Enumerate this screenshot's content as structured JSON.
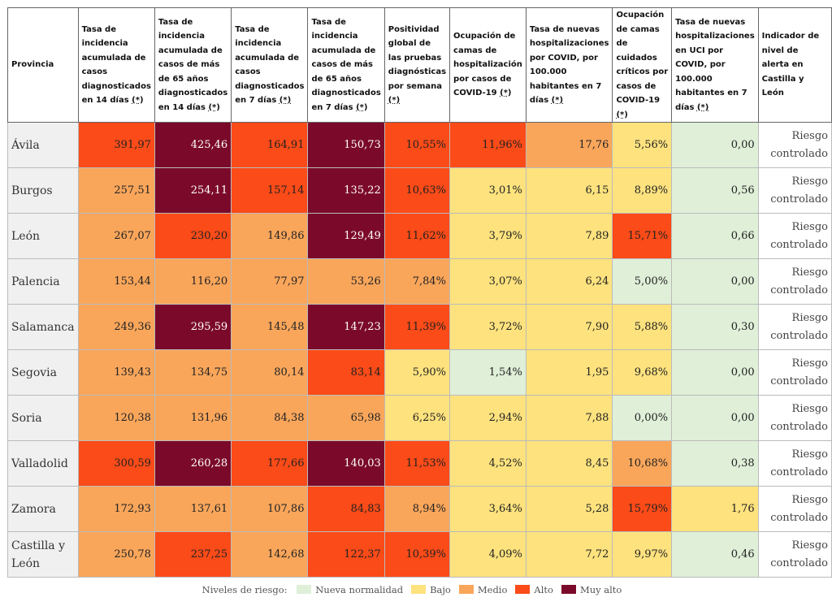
{
  "colors": {
    "normal": "#dfefd8",
    "bajo": "#fde27e",
    "medio": "#f9a65b",
    "alto": "#fb4b18",
    "muyalto": "#7b0a2a"
  },
  "table": {
    "headers": [
      {
        "text": "Provincia",
        "ast": ""
      },
      {
        "text": "Tasa de incidencia acumulada de casos diagnosticados en 14 días ",
        "ast": "(*)"
      },
      {
        "text": "Tasa de incidencia acumulada de casos de más de 65 años diagnosticados en 14 días ",
        "ast": "(*)"
      },
      {
        "text": "Tasa de incidencia acumulada de casos diagnosticados en 7 días ",
        "ast": "(*)"
      },
      {
        "text": "Tasa de incidencia acumulada de casos de más de 65 años diagnosticados en 7 días ",
        "ast": "(*)"
      },
      {
        "text": "Positividad global de las pruebas diagnósticas por semana ",
        "ast": "(*)"
      },
      {
        "text": "Ocupación de camas de hospitalización por casos de COVID-19 ",
        "ast": "(*)"
      },
      {
        "text": "Tasa de nuevas hospitalizaciones por COVID, por 100.000 habitantes en 7 días ",
        "ast": "(*)"
      },
      {
        "text": "Ocupación de camas de cuidados críticos por casos de COVID-19 ",
        "ast": "(*)"
      },
      {
        "text": "Tasa de nuevas hospitalizaciones en UCI por COVID, por 100.000 habitantes en 7 días ",
        "ast": "(*)"
      },
      {
        "text": "Indicador de nivel de alerta en Castilla y León",
        "ast": ""
      }
    ],
    "rows": [
      {
        "province": "Ávila",
        "cells": [
          [
            "391,97",
            "alto"
          ],
          [
            "425,46",
            "muyalto"
          ],
          [
            "164,91",
            "alto"
          ],
          [
            "150,73",
            "muyalto"
          ],
          [
            "10,55%",
            "alto"
          ],
          [
            "11,96%",
            "alto"
          ],
          [
            "17,76",
            "medio"
          ],
          [
            "5,56%",
            "bajo"
          ],
          [
            "0,00",
            "normal"
          ]
        ],
        "alert": "Riesgo controlado"
      },
      {
        "province": "Burgos",
        "cells": [
          [
            "257,51",
            "medio"
          ],
          [
            "254,11",
            "muyalto"
          ],
          [
            "157,14",
            "alto"
          ],
          [
            "135,22",
            "muyalto"
          ],
          [
            "10,63%",
            "alto"
          ],
          [
            "3,01%",
            "bajo"
          ],
          [
            "6,15",
            "bajo"
          ],
          [
            "8,89%",
            "bajo"
          ],
          [
            "0,56",
            "normal"
          ]
        ],
        "alert": "Riesgo controlado"
      },
      {
        "province": "León",
        "cells": [
          [
            "267,07",
            "medio"
          ],
          [
            "230,20",
            "alto"
          ],
          [
            "149,86",
            "medio"
          ],
          [
            "129,49",
            "muyalto"
          ],
          [
            "11,62%",
            "alto"
          ],
          [
            "3,79%",
            "bajo"
          ],
          [
            "7,89",
            "bajo"
          ],
          [
            "15,71%",
            "alto"
          ],
          [
            "0,66",
            "normal"
          ]
        ],
        "alert": "Riesgo controlado"
      },
      {
        "province": "Palencia",
        "cells": [
          [
            "153,44",
            "medio"
          ],
          [
            "116,20",
            "medio"
          ],
          [
            "77,97",
            "medio"
          ],
          [
            "53,26",
            "medio"
          ],
          [
            "7,84%",
            "medio"
          ],
          [
            "3,07%",
            "bajo"
          ],
          [
            "6,24",
            "bajo"
          ],
          [
            "5,00%",
            "normal"
          ],
          [
            "0,00",
            "normal"
          ]
        ],
        "alert": "Riesgo controlado"
      },
      {
        "province": "Salamanca",
        "cells": [
          [
            "249,36",
            "medio"
          ],
          [
            "295,59",
            "muyalto"
          ],
          [
            "145,48",
            "medio"
          ],
          [
            "147,23",
            "muyalto"
          ],
          [
            "11,39%",
            "alto"
          ],
          [
            "3,72%",
            "bajo"
          ],
          [
            "7,90",
            "bajo"
          ],
          [
            "5,88%",
            "bajo"
          ],
          [
            "0,30",
            "normal"
          ]
        ],
        "alert": "Riesgo controlado"
      },
      {
        "province": "Segovia",
        "cells": [
          [
            "139,43",
            "medio"
          ],
          [
            "134,75",
            "medio"
          ],
          [
            "80,14",
            "medio"
          ],
          [
            "83,14",
            "alto"
          ],
          [
            "5,90%",
            "bajo"
          ],
          [
            "1,54%",
            "normal"
          ],
          [
            "1,95",
            "bajo"
          ],
          [
            "9,68%",
            "bajo"
          ],
          [
            "0,00",
            "normal"
          ]
        ],
        "alert": "Riesgo controlado"
      },
      {
        "province": "Soria",
        "cells": [
          [
            "120,38",
            "medio"
          ],
          [
            "131,96",
            "medio"
          ],
          [
            "84,38",
            "medio"
          ],
          [
            "65,98",
            "medio"
          ],
          [
            "6,25%",
            "bajo"
          ],
          [
            "2,94%",
            "bajo"
          ],
          [
            "7,88",
            "bajo"
          ],
          [
            "0,00%",
            "normal"
          ],
          [
            "0,00",
            "normal"
          ]
        ],
        "alert": "Riesgo controlado"
      },
      {
        "province": "Valladolid",
        "cells": [
          [
            "300,59",
            "alto"
          ],
          [
            "260,28",
            "muyalto"
          ],
          [
            "177,66",
            "alto"
          ],
          [
            "140,03",
            "muyalto"
          ],
          [
            "11,53%",
            "alto"
          ],
          [
            "4,52%",
            "bajo"
          ],
          [
            "8,45",
            "bajo"
          ],
          [
            "10,68%",
            "medio"
          ],
          [
            "0,38",
            "normal"
          ]
        ],
        "alert": "Riesgo controlado"
      },
      {
        "province": "Zamora",
        "cells": [
          [
            "172,93",
            "medio"
          ],
          [
            "137,61",
            "medio"
          ],
          [
            "107,86",
            "medio"
          ],
          [
            "84,83",
            "alto"
          ],
          [
            "8,94%",
            "medio"
          ],
          [
            "3,64%",
            "bajo"
          ],
          [
            "5,28",
            "bajo"
          ],
          [
            "15,79%",
            "alto"
          ],
          [
            "1,76",
            "bajo"
          ]
        ],
        "alert": "Riesgo controlado"
      },
      {
        "province": "Castilla y León",
        "cells": [
          [
            "250,78",
            "medio"
          ],
          [
            "237,25",
            "alto"
          ],
          [
            "142,68",
            "medio"
          ],
          [
            "122,37",
            "alto"
          ],
          [
            "10,39%",
            "alto"
          ],
          [
            "4,09%",
            "bajo"
          ],
          [
            "7,72",
            "bajo"
          ],
          [
            "9,97%",
            "bajo"
          ],
          [
            "0,46",
            "normal"
          ]
        ],
        "alert": "Riesgo controlado"
      }
    ]
  },
  "legend": {
    "label": "Niveles de riesgo:",
    "items": [
      {
        "key": "normal",
        "label": "Nueva normalidad"
      },
      {
        "key": "bajo",
        "label": "Bajo"
      },
      {
        "key": "medio",
        "label": "Medio"
      },
      {
        "key": "alto",
        "label": "Alto"
      },
      {
        "key": "muyalto",
        "label": "Muy alto"
      }
    ]
  }
}
